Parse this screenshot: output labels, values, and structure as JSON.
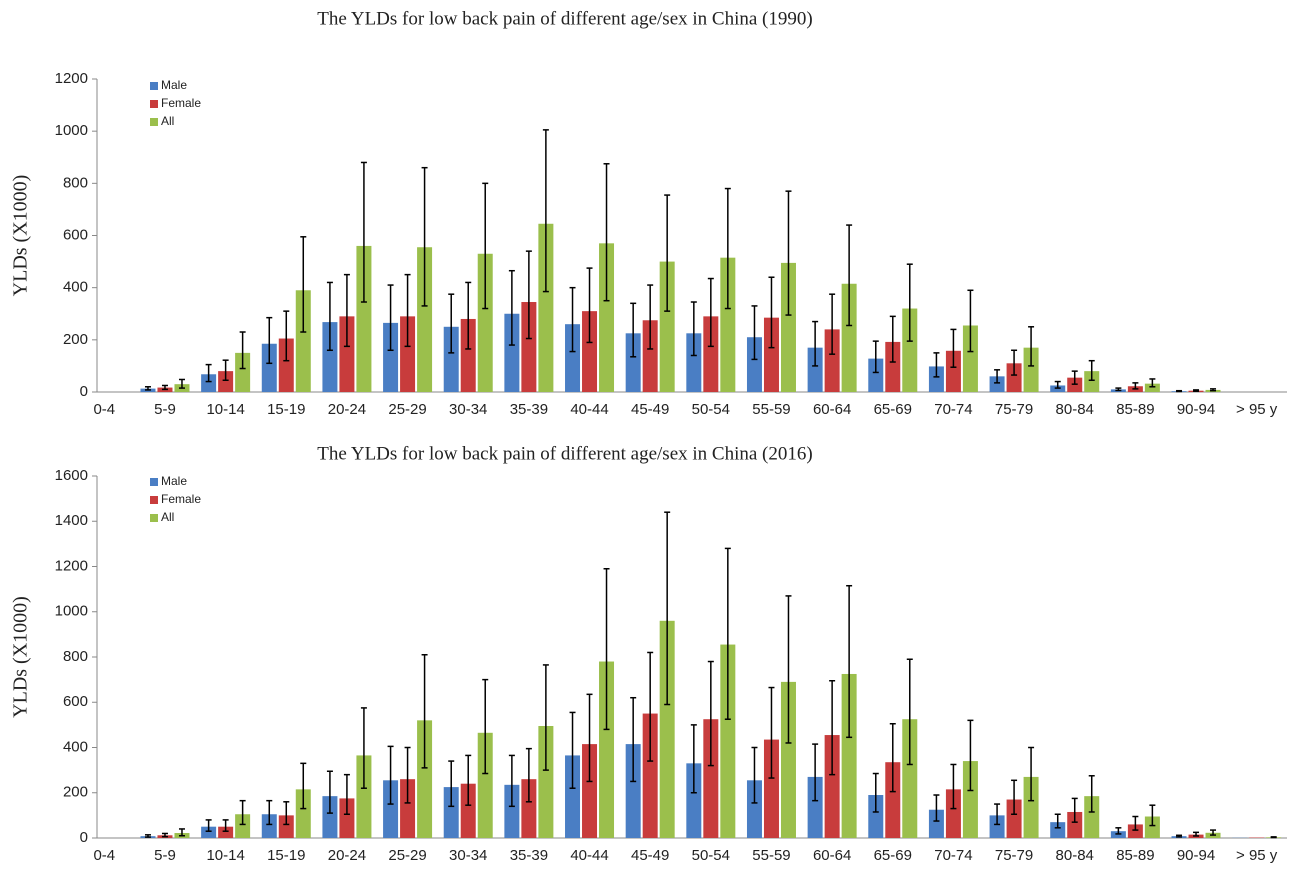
{
  "chart_data": [
    {
      "type": "bar",
      "title": "The YLDs for low back pain of different age/sex in China (1990)",
      "y_label": "YLDs (X1000)",
      "categories": [
        "0-4",
        "5-9",
        "10-14",
        "15-19",
        "20-24",
        "25-29",
        "30-34",
        "35-39",
        "40-44",
        "45-49",
        "50-54",
        "55-59",
        "60-64",
        "65-69",
        "70-74",
        "75-79",
        "80-84",
        "85-89",
        "90-94",
        "> 95 y"
      ],
      "ylim": [
        0,
        1200
      ],
      "yticks": [
        0,
        200,
        400,
        600,
        800,
        1000,
        1200
      ],
      "legend": "top-left",
      "series": [
        {
          "name": "Male",
          "color": "#4a7ec4",
          "values": [
            0,
            13,
            68,
            185,
            268,
            265,
            250,
            300,
            260,
            225,
            225,
            210,
            170,
            128,
            98,
            60,
            25,
            10,
            3,
            0
          ],
          "lower": [
            null,
            8,
            40,
            110,
            160,
            160,
            150,
            180,
            155,
            135,
            140,
            125,
            100,
            75,
            58,
            35,
            15,
            6,
            2,
            null
          ],
          "upper": [
            null,
            20,
            105,
            285,
            420,
            410,
            375,
            465,
            400,
            340,
            345,
            330,
            270,
            195,
            150,
            85,
            40,
            15,
            5,
            null
          ]
        },
        {
          "name": "Female",
          "color": "#c83c3c",
          "values": [
            0,
            17,
            80,
            205,
            290,
            290,
            280,
            345,
            310,
            275,
            290,
            285,
            240,
            192,
            158,
            110,
            55,
            22,
            5,
            0
          ],
          "lower": [
            null,
            10,
            45,
            120,
            175,
            175,
            165,
            205,
            190,
            165,
            175,
            170,
            145,
            115,
            95,
            65,
            30,
            12,
            3,
            null
          ],
          "upper": [
            null,
            25,
            122,
            310,
            450,
            450,
            420,
            540,
            475,
            410,
            435,
            440,
            375,
            290,
            240,
            160,
            80,
            35,
            8,
            null
          ]
        },
        {
          "name": "All",
          "color": "#9bbf4c",
          "values": [
            0,
            30,
            150,
            390,
            560,
            555,
            530,
            645,
            570,
            500,
            515,
            495,
            415,
            320,
            255,
            170,
            80,
            32,
            8,
            0
          ],
          "lower": [
            null,
            15,
            90,
            230,
            345,
            330,
            320,
            385,
            350,
            310,
            320,
            295,
            255,
            195,
            155,
            100,
            45,
            20,
            5,
            null
          ],
          "upper": [
            null,
            48,
            230,
            595,
            880,
            860,
            800,
            1005,
            875,
            755,
            780,
            770,
            640,
            490,
            390,
            250,
            120,
            50,
            12,
            null
          ]
        }
      ]
    },
    {
      "type": "bar",
      "title": "The YLDs for low back pain of different age/sex in China (2016)",
      "y_label": "YLDs (X1000)",
      "categories": [
        "0-4",
        "5-9",
        "10-14",
        "15-19",
        "20-24",
        "25-29",
        "30-34",
        "35-39",
        "40-44",
        "45-49",
        "50-54",
        "55-59",
        "60-64",
        "65-69",
        "70-74",
        "75-79",
        "80-84",
        "85-89",
        "90-94",
        "> 95 y"
      ],
      "ylim": [
        0,
        1600
      ],
      "yticks": [
        0,
        200,
        400,
        600,
        800,
        1000,
        1200,
        1400,
        1600
      ],
      "legend": "top-left",
      "series": [
        {
          "name": "Male",
          "color": "#4a7ec4",
          "values": [
            0,
            8,
            50,
            105,
            185,
            255,
            225,
            235,
            365,
            415,
            330,
            255,
            270,
            190,
            125,
            100,
            70,
            30,
            8,
            1
          ],
          "lower": [
            null,
            4,
            30,
            60,
            110,
            150,
            140,
            140,
            220,
            250,
            200,
            155,
            165,
            115,
            75,
            60,
            45,
            18,
            5,
            null
          ],
          "upper": [
            null,
            14,
            80,
            165,
            295,
            405,
            340,
            365,
            555,
            620,
            500,
            400,
            415,
            285,
            190,
            150,
            105,
            45,
            12,
            null
          ]
        },
        {
          "name": "Female",
          "color": "#c83c3c",
          "values": [
            0,
            12,
            50,
            100,
            175,
            260,
            240,
            260,
            415,
            550,
            525,
            435,
            455,
            335,
            215,
            170,
            115,
            60,
            15,
            2
          ],
          "lower": [
            null,
            6,
            30,
            60,
            105,
            155,
            145,
            160,
            250,
            340,
            320,
            265,
            280,
            205,
            130,
            105,
            70,
            35,
            9,
            null
          ],
          "upper": [
            null,
            20,
            80,
            160,
            280,
            400,
            365,
            395,
            635,
            820,
            780,
            665,
            695,
            505,
            325,
            255,
            175,
            95,
            25,
            null
          ]
        },
        {
          "name": "All",
          "color": "#9bbf4c",
          "values": [
            0,
            22,
            105,
            215,
            365,
            520,
            465,
            495,
            780,
            960,
            855,
            690,
            725,
            525,
            340,
            270,
            185,
            95,
            23,
            3
          ],
          "lower": [
            null,
            10,
            60,
            130,
            220,
            310,
            285,
            300,
            480,
            590,
            525,
            420,
            445,
            325,
            210,
            165,
            115,
            55,
            13,
            2
          ],
          "upper": [
            null,
            40,
            165,
            330,
            575,
            810,
            700,
            765,
            1190,
            1440,
            1280,
            1070,
            1115,
            790,
            520,
            400,
            275,
            145,
            35,
            5
          ]
        }
      ]
    }
  ]
}
